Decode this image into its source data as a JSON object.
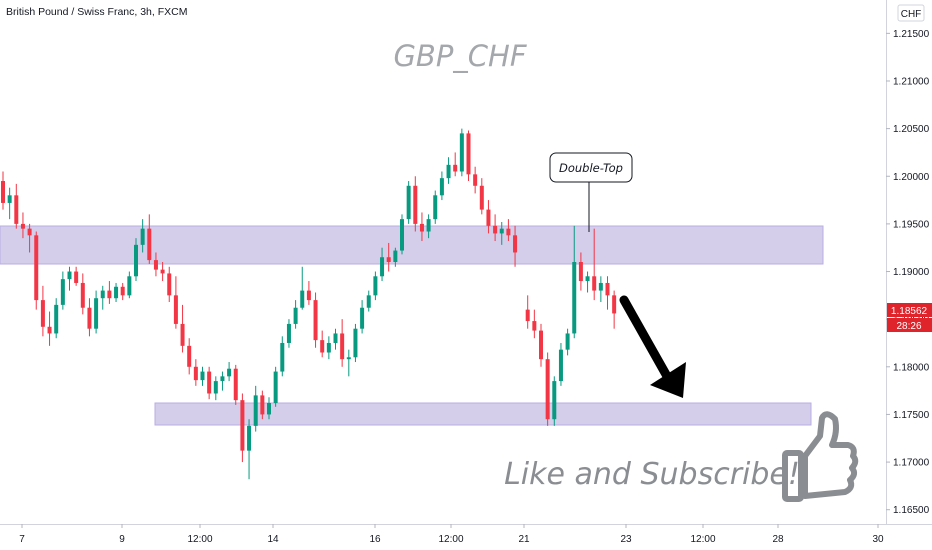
{
  "header": {
    "symbol": "British Pound / Swiss Franc, 3h, FXCM",
    "currency": "CHF",
    "last_price": "1.18562",
    "countdown": "28:26"
  },
  "annotations": {
    "callout": "Double-Top",
    "cta": "Like and Subscribe!"
  },
  "colors": {
    "bull": "#089981",
    "bear": "#f23645",
    "zone": "#c9c2e6",
    "current_price": "#e0242c"
  },
  "chart_data": {
    "type": "candlestick",
    "title": "GBP_CHF",
    "ylim": [
      1.1635,
      1.2185
    ],
    "y_ticks": [
      "1.21500",
      "1.21000",
      "1.20500",
      "1.20000",
      "1.19500",
      "1.19000",
      "1.18500",
      "1.18000",
      "1.17500",
      "1.17000",
      "1.16500"
    ],
    "x_ticks": [
      "7",
      "9",
      "12:00",
      "14",
      "16",
      "12:00",
      "21",
      "23",
      "12:00",
      "28",
      "30"
    ],
    "zones": [
      {
        "name": "resistance",
        "low": 1.1909,
        "high": 1.1948
      },
      {
        "name": "support",
        "low": 1.1733,
        "high": 1.1755
      }
    ],
    "candles": [
      [
        1.1995,
        1.2005,
        1.1965,
        1.1972
      ],
      [
        1.1972,
        1.1988,
        1.1955,
        1.198
      ],
      [
        1.198,
        1.1992,
        1.1945,
        1.195
      ],
      [
        1.195,
        1.1962,
        1.1935,
        1.1945
      ],
      [
        1.1945,
        1.195,
        1.192,
        1.1938
      ],
      [
        1.1938,
        1.1942,
        1.186,
        1.187
      ],
      [
        1.187,
        1.1885,
        1.1832,
        1.1842
      ],
      [
        1.1842,
        1.1858,
        1.1822,
        1.1835
      ],
      [
        1.1835,
        1.1872,
        1.183,
        1.1865
      ],
      [
        1.1865,
        1.19,
        1.186,
        1.1892
      ],
      [
        1.1892,
        1.1905,
        1.188,
        1.19
      ],
      [
        1.19,
        1.1905,
        1.1885,
        1.1888
      ],
      [
        1.1888,
        1.1898,
        1.1855,
        1.1862
      ],
      [
        1.1862,
        1.1872,
        1.1832,
        1.184
      ],
      [
        1.184,
        1.188,
        1.1835,
        1.1872
      ],
      [
        1.1872,
        1.1885,
        1.186,
        1.188
      ],
      [
        1.188,
        1.189,
        1.1866,
        1.1872
      ],
      [
        1.1872,
        1.1888,
        1.1868,
        1.1884
      ],
      [
        1.1884,
        1.1888,
        1.187,
        1.1875
      ],
      [
        1.1875,
        1.19,
        1.1872,
        1.1895
      ],
      [
        1.1895,
        1.1935,
        1.189,
        1.1928
      ],
      [
        1.1928,
        1.1955,
        1.192,
        1.1945
      ],
      [
        1.1945,
        1.196,
        1.1908,
        1.1912
      ],
      [
        1.1912,
        1.192,
        1.1895,
        1.1902
      ],
      [
        1.1902,
        1.191,
        1.189,
        1.1898
      ],
      [
        1.1898,
        1.1905,
        1.1868,
        1.1875
      ],
      [
        1.1875,
        1.1895,
        1.184,
        1.1845
      ],
      [
        1.1845,
        1.1865,
        1.1815,
        1.1822
      ],
      [
        1.1822,
        1.183,
        1.1792,
        1.18
      ],
      [
        1.18,
        1.1808,
        1.178,
        1.1786
      ],
      [
        1.1786,
        1.18,
        1.178,
        1.1795
      ],
      [
        1.1795,
        1.18,
        1.1766,
        1.1772
      ],
      [
        1.1772,
        1.179,
        1.1765,
        1.1785
      ],
      [
        1.1785,
        1.1795,
        1.1775,
        1.179
      ],
      [
        1.179,
        1.1805,
        1.1785,
        1.1798
      ],
      [
        1.1798,
        1.1802,
        1.176,
        1.1765
      ],
      [
        1.1765,
        1.1772,
        1.17,
        1.1712
      ],
      [
        1.1712,
        1.1745,
        1.1682,
        1.1738
      ],
      [
        1.1738,
        1.178,
        1.1732,
        1.177
      ],
      [
        1.177,
        1.1775,
        1.1745,
        1.175
      ],
      [
        1.175,
        1.1768,
        1.1745,
        1.1762
      ],
      [
        1.1762,
        1.18,
        1.1758,
        1.1795
      ],
      [
        1.1795,
        1.1832,
        1.179,
        1.1825
      ],
      [
        1.1825,
        1.185,
        1.182,
        1.1845
      ],
      [
        1.1845,
        1.187,
        1.184,
        1.1862
      ],
      [
        1.1862,
        1.1905,
        1.186,
        1.188
      ],
      [
        1.188,
        1.189,
        1.1865,
        1.187
      ],
      [
        1.187,
        1.1878,
        1.182,
        1.1828
      ],
      [
        1.1828,
        1.1838,
        1.181,
        1.1815
      ],
      [
        1.1815,
        1.1832,
        1.1808,
        1.1825
      ],
      [
        1.1825,
        1.184,
        1.1818,
        1.1835
      ],
      [
        1.1835,
        1.185,
        1.18,
        1.1808
      ],
      [
        1.1808,
        1.1818,
        1.179,
        1.181
      ],
      [
        1.181,
        1.1845,
        1.1805,
        1.184
      ],
      [
        1.184,
        1.187,
        1.1835,
        1.1862
      ],
      [
        1.1862,
        1.188,
        1.1858,
        1.1875
      ],
      [
        1.1875,
        1.19,
        1.187,
        1.1895
      ],
      [
        1.1895,
        1.1925,
        1.189,
        1.1915
      ],
      [
        1.1915,
        1.193,
        1.19,
        1.191
      ],
      [
        1.191,
        1.1925,
        1.1905,
        1.1922
      ],
      [
        1.1922,
        1.196,
        1.1918,
        1.1955
      ],
      [
        1.1955,
        1.1995,
        1.195,
        1.199
      ],
      [
        1.199,
        1.2,
        1.1942,
        1.195
      ],
      [
        1.195,
        1.1962,
        1.1932,
        1.1942
      ],
      [
        1.1942,
        1.196,
        1.1935,
        1.1955
      ],
      [
        1.1955,
        1.1985,
        1.195,
        1.198
      ],
      [
        1.198,
        1.2005,
        1.1975,
        1.1998
      ],
      [
        1.1998,
        1.202,
        1.1992,
        1.2012
      ],
      [
        1.2012,
        1.2025,
        1.2,
        1.2005
      ],
      [
        1.2005,
        1.205,
        1.2,
        1.2045
      ],
      [
        1.2045,
        1.2048,
        1.1995,
        1.2002
      ],
      [
        1.2002,
        1.201,
        1.1982,
        1.199
      ],
      [
        1.199,
        1.1998,
        1.196,
        1.1965
      ],
      [
        1.1965,
        1.1975,
        1.194,
        1.1948
      ],
      [
        1.1948,
        1.196,
        1.1932,
        1.194
      ],
      [
        1.194,
        1.1952,
        1.1928,
        1.1945
      ],
      [
        1.1945,
        1.1955,
        1.1932,
        1.1938
      ],
      [
        1.1938,
        1.1948,
        1.1905,
        1.192
      ],
      [
        1.186,
        1.1875,
        1.184,
        1.1848
      ],
      [
        1.1848,
        1.186,
        1.183,
        1.1838
      ],
      [
        1.1838,
        1.1845,
        1.18,
        1.1808
      ],
      [
        1.1808,
        1.1815,
        1.1738,
        1.1745
      ],
      [
        1.1745,
        1.179,
        1.1738,
        1.1785
      ],
      [
        1.1785,
        1.1825,
        1.178,
        1.1818
      ],
      [
        1.1818,
        1.184,
        1.1812,
        1.1835
      ],
      [
        1.1835,
        1.1948,
        1.183,
        1.191
      ],
      [
        1.191,
        1.192,
        1.188,
        1.189
      ],
      [
        1.189,
        1.19,
        1.1878,
        1.1895
      ],
      [
        1.1895,
        1.1945,
        1.187,
        1.188
      ],
      [
        1.188,
        1.1895,
        1.1868,
        1.1888
      ],
      [
        1.1888,
        1.1895,
        1.186,
        1.1875
      ],
      [
        1.1875,
        1.188,
        1.184,
        1.1856
      ]
    ]
  }
}
